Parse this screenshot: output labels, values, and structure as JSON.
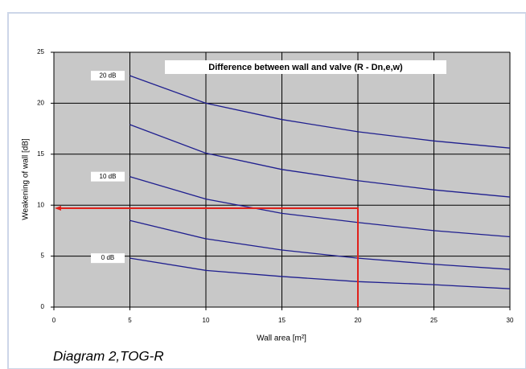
{
  "chart_data": {
    "type": "line",
    "title": "Difference between wall and valve   (R - Dn,e,w)",
    "xlabel": "Wall area [m²]",
    "ylabel": "Weakening of wall [dB]",
    "caption": "Diagram 2,TOG-R",
    "x": [
      5,
      10,
      15,
      20,
      25,
      30
    ],
    "series": [
      {
        "name": "20 dB",
        "color": "#1f1f8f",
        "values": [
          22.7,
          20.0,
          18.4,
          17.2,
          16.3,
          15.6
        ]
      },
      {
        "name": null,
        "color": "#1f1f8f",
        "values": [
          17.9,
          15.1,
          13.5,
          12.4,
          11.5,
          10.8
        ]
      },
      {
        "name": "10 dB",
        "color": "#1f1f8f",
        "values": [
          12.8,
          10.6,
          9.2,
          8.3,
          7.5,
          6.9
        ]
      },
      {
        "name": null,
        "color": "#1f1f8f",
        "values": [
          8.5,
          6.7,
          5.6,
          4.8,
          4.2,
          3.7
        ]
      },
      {
        "name": "0 dB",
        "color": "#1f1f8f",
        "values": [
          4.8,
          3.6,
          3.0,
          2.5,
          2.2,
          1.8
        ]
      }
    ],
    "reading": {
      "x": 20,
      "y": 9.7,
      "color": "#e0201a"
    },
    "xlim": [
      0,
      30
    ],
    "xticks": [
      0,
      5,
      10,
      15,
      20,
      25,
      30
    ],
    "ylim": [
      0,
      25
    ],
    "yticks": [
      0,
      5,
      10,
      15,
      20,
      25
    ],
    "grid": true
  }
}
